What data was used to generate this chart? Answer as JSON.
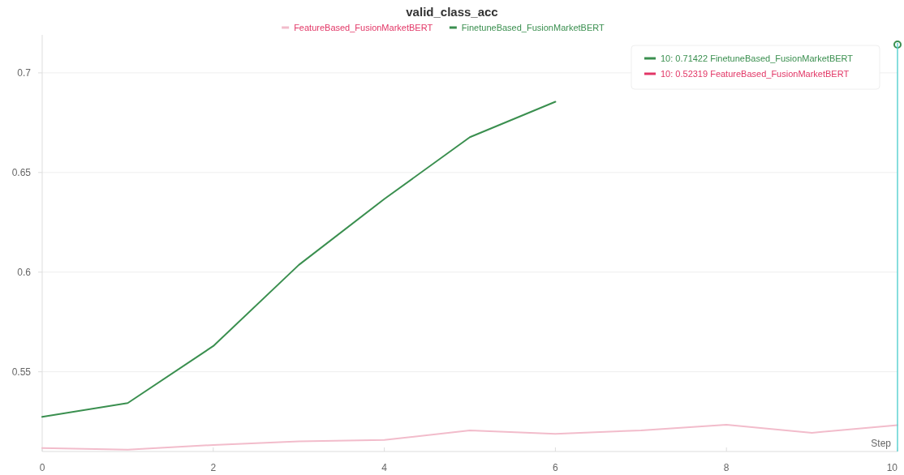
{
  "chart_data": {
    "type": "line",
    "title": "valid_class_acc",
    "xlabel": "Step",
    "x": [
      0,
      1,
      2,
      3,
      4,
      5,
      6,
      7,
      8,
      9,
      10
    ],
    "series": [
      {
        "name": "FeatureBased_FusionMarketBERT",
        "color": "#f2bccb",
        "values": [
          0.5117,
          0.5109,
          0.5133,
          0.5151,
          0.5158,
          0.5206,
          0.5188,
          0.5206,
          0.5234,
          0.5194,
          0.52319
        ]
      },
      {
        "name": "FinetuneBased_FusionMarketBERT",
        "color": "#3a8f4f",
        "values": [
          0.5274,
          0.5343,
          0.5629,
          0.6036,
          0.6367,
          0.6677,
          0.6855,
          null,
          null,
          null,
          0.71422
        ]
      }
    ],
    "xlim": [
      0,
      10
    ],
    "xticks": [
      0,
      2,
      4,
      6,
      8,
      10
    ],
    "ylim": [
      0.51,
      0.715
    ],
    "yticks": [
      0.55,
      0.6,
      0.65,
      0.7
    ],
    "grid": "y",
    "legend": "top",
    "line_style": "solid",
    "marker": "none",
    "ref_lines": [
      {
        "axis": "x",
        "value": 10,
        "color": "#5fd3d3"
      }
    ],
    "annotations": [
      "10: 0.71422 FinetuneBased_FusionMarketBERT",
      "10: 0.52319 FeatureBased_FusionMarketBERT"
    ]
  }
}
